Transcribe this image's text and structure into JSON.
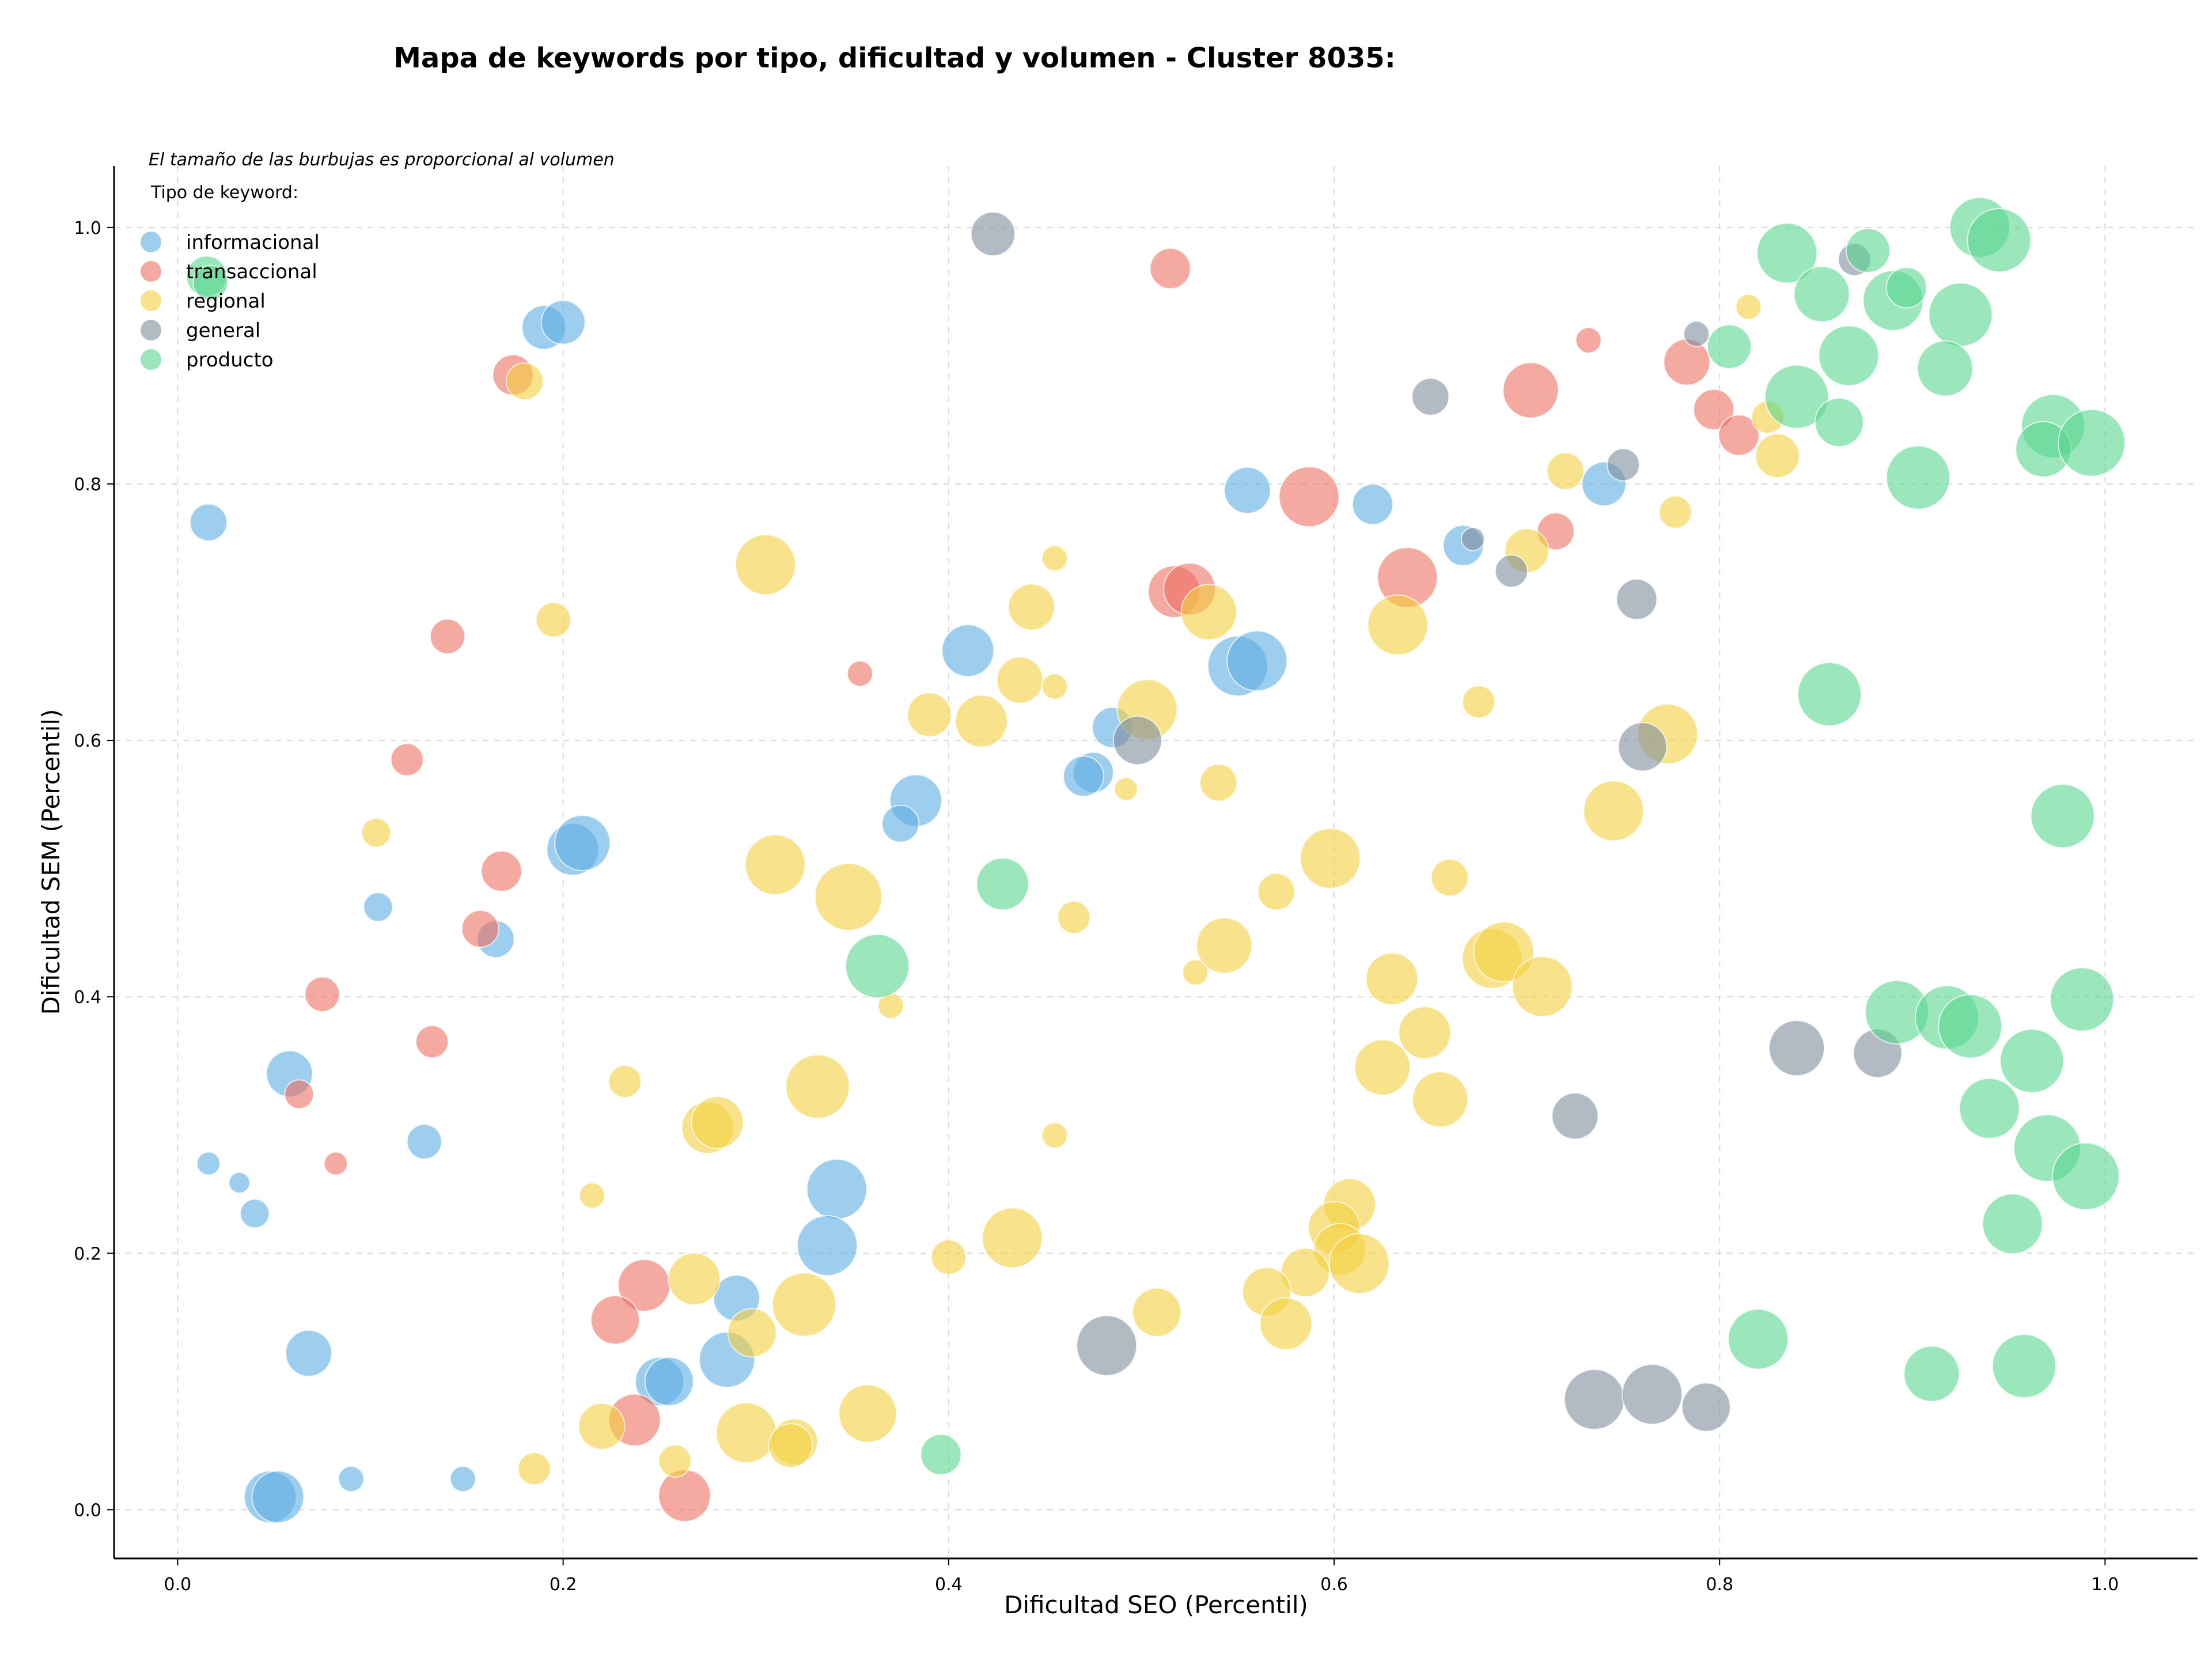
{
  "chart_data": {
    "type": "scatter",
    "title": "Mapa de keywords por tipo, dificultad y volumen - Cluster 8035:",
    "xlabel": "Dificultad SEO (Percentil)",
    "ylabel": "Dificultad SEM (Percentil)",
    "note": "El tamaño de las burbujas es proporcional al volumen",
    "legend_title": "Tipo de keyword:",
    "legend_position": "top-left",
    "xlim": [
      -0.033,
      1.048
    ],
    "ylim": [
      -0.038,
      1.048
    ],
    "xticks": [
      "0.0",
      "0.2",
      "0.4",
      "0.6",
      "0.8",
      "1.0"
    ],
    "yticks": [
      "0.0",
      "0.2",
      "0.4",
      "0.6",
      "0.8",
      "1.0"
    ],
    "grid": true,
    "series": [
      {
        "name": "informacional",
        "color": "#5DADE2",
        "points": [
          [
            0.016,
            0.77,
            32
          ],
          [
            0.19,
            0.922,
            38
          ],
          [
            0.2,
            0.926,
            38
          ],
          [
            0.555,
            0.795,
            40
          ],
          [
            0.62,
            0.784,
            35
          ],
          [
            0.667,
            0.752,
            35
          ],
          [
            0.74,
            0.8,
            38
          ],
          [
            0.41,
            0.67,
            45
          ],
          [
            0.55,
            0.658,
            52
          ],
          [
            0.56,
            0.662,
            52
          ],
          [
            0.383,
            0.553,
            45
          ],
          [
            0.375,
            0.535,
            32
          ],
          [
            0.475,
            0.575,
            35
          ],
          [
            0.47,
            0.572,
            35
          ],
          [
            0.485,
            0.61,
            35
          ],
          [
            0.205,
            0.515,
            45
          ],
          [
            0.21,
            0.52,
            48
          ],
          [
            0.104,
            0.47,
            25
          ],
          [
            0.165,
            0.445,
            32
          ],
          [
            0.058,
            0.34,
            40
          ],
          [
            0.128,
            0.287,
            30
          ],
          [
            0.016,
            0.27,
            20
          ],
          [
            0.032,
            0.255,
            18
          ],
          [
            0.04,
            0.231,
            25
          ],
          [
            0.342,
            0.25,
            52
          ],
          [
            0.337,
            0.206,
            52
          ],
          [
            0.29,
            0.165,
            40
          ],
          [
            0.285,
            0.117,
            48
          ],
          [
            0.25,
            0.1,
            42
          ],
          [
            0.255,
            0.1,
            42
          ],
          [
            0.068,
            0.122,
            40
          ],
          [
            0.048,
            0.01,
            45
          ],
          [
            0.052,
            0.01,
            45
          ],
          [
            0.09,
            0.024,
            22
          ],
          [
            0.148,
            0.024,
            22
          ]
        ]
      },
      {
        "name": "transaccional",
        "color": "#EC7063",
        "points": [
          [
            0.515,
            0.968,
            35
          ],
          [
            0.732,
            0.912,
            22
          ],
          [
            0.702,
            0.873,
            48
          ],
          [
            0.783,
            0.895,
            40
          ],
          [
            0.797,
            0.858,
            35
          ],
          [
            0.81,
            0.838,
            35
          ],
          [
            0.587,
            0.79,
            52
          ],
          [
            0.638,
            0.727,
            52
          ],
          [
            0.715,
            0.763,
            32
          ],
          [
            0.517,
            0.716,
            45
          ],
          [
            0.525,
            0.718,
            45
          ],
          [
            0.14,
            0.681,
            30
          ],
          [
            0.354,
            0.652,
            22
          ],
          [
            0.119,
            0.585,
            28
          ],
          [
            0.168,
            0.498,
            35
          ],
          [
            0.157,
            0.453,
            32
          ],
          [
            0.075,
            0.402,
            30
          ],
          [
            0.132,
            0.365,
            28
          ],
          [
            0.063,
            0.324,
            25
          ],
          [
            0.082,
            0.27,
            20
          ],
          [
            0.242,
            0.175,
            45
          ],
          [
            0.227,
            0.148,
            42
          ],
          [
            0.237,
            0.07,
            45
          ],
          [
            0.263,
            0.011,
            45
          ],
          [
            0.174,
            0.885,
            35
          ]
        ]
      },
      {
        "name": "regional",
        "color": "#F4D03F",
        "points": [
          [
            0.815,
            0.938,
            22
          ],
          [
            0.825,
            0.852,
            28
          ],
          [
            0.83,
            0.822,
            38
          ],
          [
            0.72,
            0.81,
            32
          ],
          [
            0.777,
            0.778,
            28
          ],
          [
            0.7,
            0.748,
            38
          ],
          [
            0.305,
            0.737,
            52
          ],
          [
            0.455,
            0.742,
            22
          ],
          [
            0.195,
            0.694,
            30
          ],
          [
            0.443,
            0.704,
            40
          ],
          [
            0.535,
            0.7,
            48
          ],
          [
            0.633,
            0.69,
            52
          ],
          [
            0.437,
            0.647,
            40
          ],
          [
            0.455,
            0.642,
            22
          ],
          [
            0.39,
            0.62,
            38
          ],
          [
            0.417,
            0.615,
            45
          ],
          [
            0.503,
            0.624,
            52
          ],
          [
            0.675,
            0.63,
            28
          ],
          [
            0.773,
            0.605,
            52
          ],
          [
            0.492,
            0.562,
            20
          ],
          [
            0.54,
            0.567,
            32
          ],
          [
            0.745,
            0.545,
            52
          ],
          [
            0.103,
            0.528,
            25
          ],
          [
            0.31,
            0.503,
            52
          ],
          [
            0.348,
            0.478,
            58
          ],
          [
            0.598,
            0.508,
            52
          ],
          [
            0.66,
            0.493,
            32
          ],
          [
            0.57,
            0.482,
            32
          ],
          [
            0.465,
            0.462,
            28
          ],
          [
            0.543,
            0.44,
            48
          ],
          [
            0.528,
            0.419,
            22
          ],
          [
            0.37,
            0.393,
            22
          ],
          [
            0.63,
            0.414,
            45
          ],
          [
            0.682,
            0.43,
            52
          ],
          [
            0.688,
            0.435,
            52
          ],
          [
            0.708,
            0.408,
            52
          ],
          [
            0.647,
            0.372,
            45
          ],
          [
            0.625,
            0.345,
            48
          ],
          [
            0.655,
            0.32,
            48
          ],
          [
            0.332,
            0.33,
            55
          ],
          [
            0.232,
            0.334,
            28
          ],
          [
            0.275,
            0.298,
            45
          ],
          [
            0.28,
            0.302,
            45
          ],
          [
            0.455,
            0.292,
            22
          ],
          [
            0.215,
            0.245,
            22
          ],
          [
            0.608,
            0.238,
            45
          ],
          [
            0.6,
            0.22,
            45
          ],
          [
            0.603,
            0.203,
            45
          ],
          [
            0.613,
            0.192,
            52
          ],
          [
            0.585,
            0.185,
            42
          ],
          [
            0.565,
            0.17,
            42
          ],
          [
            0.575,
            0.145,
            45
          ],
          [
            0.433,
            0.212,
            52
          ],
          [
            0.4,
            0.197,
            30
          ],
          [
            0.508,
            0.154,
            42
          ],
          [
            0.268,
            0.18,
            45
          ],
          [
            0.325,
            0.16,
            55
          ],
          [
            0.298,
            0.138,
            42
          ],
          [
            0.22,
            0.065,
            40
          ],
          [
            0.258,
            0.038,
            28
          ],
          [
            0.295,
            0.06,
            52
          ],
          [
            0.32,
            0.053,
            40
          ],
          [
            0.318,
            0.05,
            38
          ],
          [
            0.358,
            0.075,
            50
          ],
          [
            0.185,
            0.032,
            28
          ],
          [
            0.18,
            0.88,
            32
          ]
        ]
      },
      {
        "name": "general",
        "color": "#7F8C9D",
        "points": [
          [
            0.423,
            0.995,
            38
          ],
          [
            0.65,
            0.868,
            32
          ],
          [
            0.788,
            0.917,
            22
          ],
          [
            0.87,
            0.975,
            28
          ],
          [
            0.75,
            0.815,
            28
          ],
          [
            0.672,
            0.757,
            20
          ],
          [
            0.692,
            0.732,
            28
          ],
          [
            0.757,
            0.71,
            35
          ],
          [
            0.76,
            0.595,
            42
          ],
          [
            0.498,
            0.6,
            42
          ],
          [
            0.84,
            0.36,
            48
          ],
          [
            0.882,
            0.356,
            42
          ],
          [
            0.725,
            0.307,
            40
          ],
          [
            0.482,
            0.128,
            52
          ],
          [
            0.735,
            0.086,
            52
          ],
          [
            0.765,
            0.09,
            52
          ],
          [
            0.793,
            0.08,
            42
          ]
        ]
      },
      {
        "name": "producto",
        "color": "#58D68D",
        "points": [
          [
            0.015,
            0.962,
            35
          ],
          [
            0.017,
            0.957,
            30
          ],
          [
            0.835,
            0.98,
            52
          ],
          [
            0.853,
            0.948,
            48
          ],
          [
            0.877,
            0.982,
            38
          ],
          [
            0.89,
            0.943,
            52
          ],
          [
            0.897,
            0.953,
            35
          ],
          [
            0.935,
            1.0,
            52
          ],
          [
            0.945,
            0.99,
            55
          ],
          [
            0.925,
            0.932,
            55
          ],
          [
            0.805,
            0.907,
            38
          ],
          [
            0.867,
            0.9,
            52
          ],
          [
            0.917,
            0.89,
            48
          ],
          [
            0.84,
            0.868,
            55
          ],
          [
            0.862,
            0.848,
            42
          ],
          [
            0.973,
            0.845,
            55
          ],
          [
            0.968,
            0.827,
            48
          ],
          [
            0.993,
            0.832,
            58
          ],
          [
            0.903,
            0.805,
            55
          ],
          [
            0.857,
            0.636,
            55
          ],
          [
            0.978,
            0.541,
            55
          ],
          [
            0.428,
            0.488,
            45
          ],
          [
            0.363,
            0.424,
            55
          ],
          [
            0.892,
            0.388,
            55
          ],
          [
            0.918,
            0.384,
            55
          ],
          [
            0.93,
            0.377,
            55
          ],
          [
            0.962,
            0.35,
            55
          ],
          [
            0.988,
            0.398,
            55
          ],
          [
            0.94,
            0.313,
            52
          ],
          [
            0.97,
            0.282,
            58
          ],
          [
            0.99,
            0.26,
            58
          ],
          [
            0.952,
            0.223,
            52
          ],
          [
            0.82,
            0.133,
            52
          ],
          [
            0.91,
            0.106,
            48
          ],
          [
            0.958,
            0.112,
            55
          ],
          [
            0.396,
            0.043,
            35
          ]
        ]
      }
    ]
  }
}
